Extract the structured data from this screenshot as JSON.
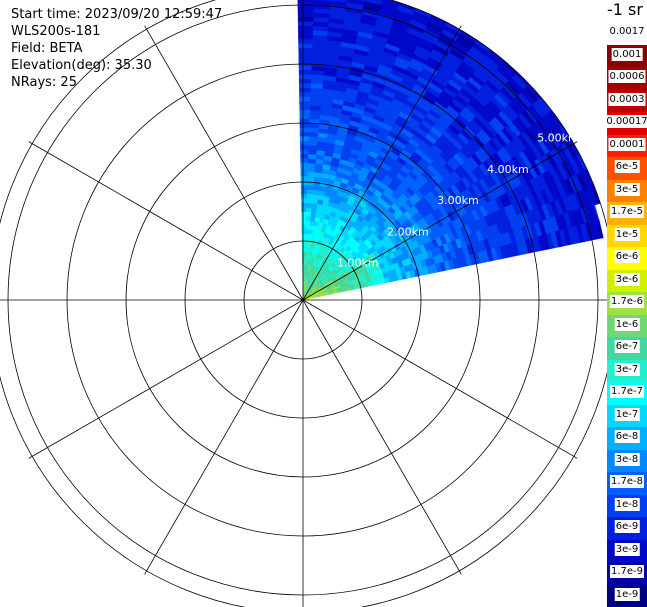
{
  "header": {
    "start_time": "Start time: 2023/09/20 12:59:47",
    "instrument": "WLS200s-181",
    "field": "Field: BETA",
    "elevation": "Elevation(deg): 35.30",
    "nrays": "NRays: 25"
  },
  "colorbar": {
    "unit": "-1 sr",
    "labels": [
      "0.0017",
      "0.001",
      "0.0006",
      "0.0003",
      "0.00017",
      "0.0001",
      "6e-5",
      "3e-5",
      "1.7e-5",
      "1e-5",
      "6e-6",
      "3e-6",
      "1.7e-6",
      "1e-6",
      "6e-7",
      "3e-7",
      "1.7e-7",
      "1e-7",
      "6e-8",
      "3e-8",
      "1.7e-8",
      "1e-8",
      "6e-9",
      "3e-9",
      "1.7e-9",
      "1e-9"
    ],
    "colors": [
      "#ffffff",
      "#8b0000",
      "#a50000",
      "#c00000",
      "#e00000",
      "#ff2000",
      "#ff5000",
      "#ff8000",
      "#ffb000",
      "#ffd800",
      "#ffff00",
      "#d0f000",
      "#a0e040",
      "#70d870",
      "#40d8a0",
      "#20f0d0",
      "#00ffff",
      "#00d8ff",
      "#00b0ff",
      "#0088ff",
      "#0060ff",
      "#0040f0",
      "#0020e0",
      "#0008c8",
      "#0000a8",
      "#000080"
    ]
  },
  "chart_data": {
    "type": "ppi_polar",
    "field": "BETA",
    "elevation_deg": 35.3,
    "nrays": 25,
    "azimuth_sector_deg": [
      -1,
      78
    ],
    "max_range_km": 5.3,
    "range_ring_labels": [
      "1.00km",
      "2.00km",
      "3.00km",
      "4.00km",
      "5.00km"
    ],
    "range_profile_log10": [
      [
        0.0,
        -5.8
      ],
      [
        0.5,
        -6.2
      ],
      [
        1.0,
        -6.6
      ],
      [
        1.5,
        -7.0
      ],
      [
        2.0,
        -7.35
      ],
      [
        2.5,
        -7.75
      ],
      [
        3.0,
        -7.9
      ],
      [
        3.5,
        -8.05
      ],
      [
        4.0,
        -8.2
      ],
      [
        4.5,
        -8.3
      ],
      [
        5.0,
        -8.4
      ]
    ]
  }
}
